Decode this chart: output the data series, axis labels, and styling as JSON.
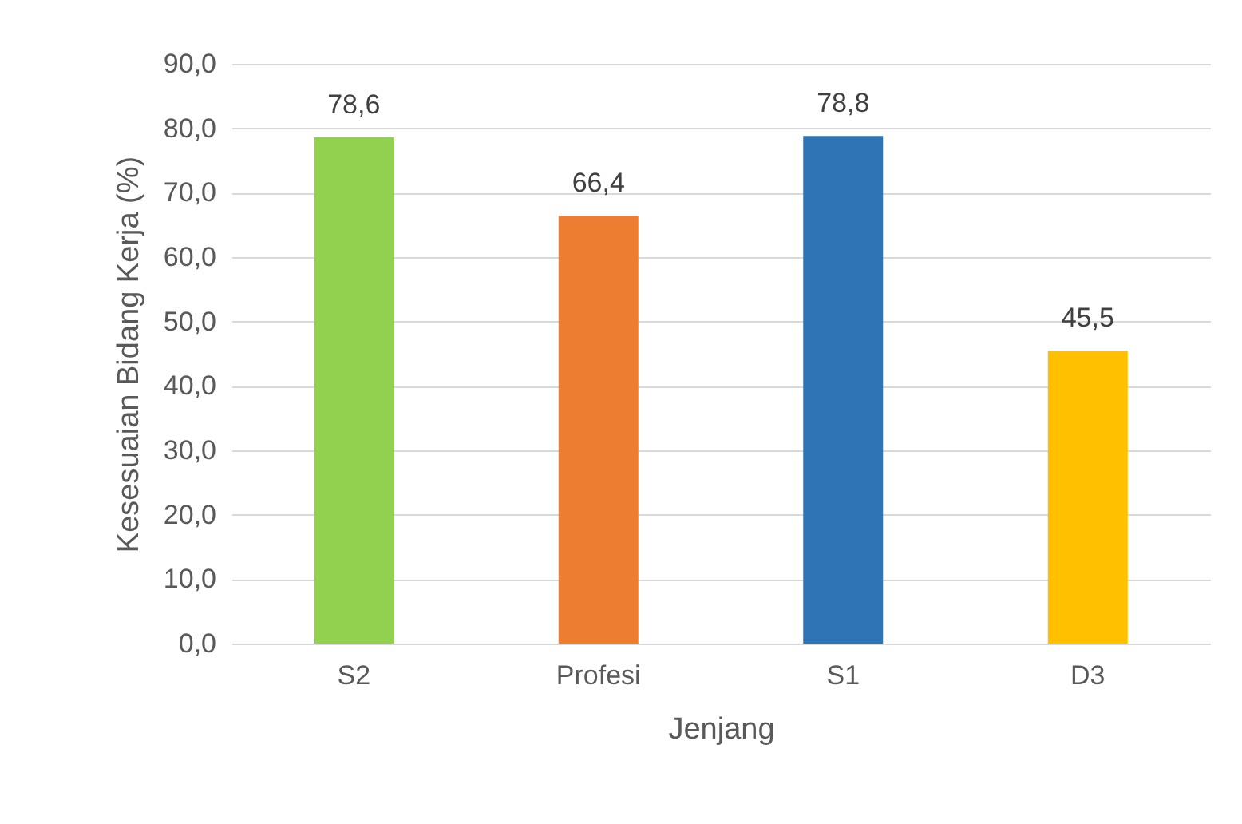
{
  "chart_data": {
    "type": "bar",
    "xlabel": "Jenjang",
    "ylabel": "Kesesuaian Bidang Kerja (%)",
    "categories": [
      "S2",
      "Profesi",
      "S1",
      "D3"
    ],
    "values": [
      78.6,
      66.4,
      78.8,
      45.5
    ],
    "value_labels": [
      "78,6",
      "66,4",
      "78,8",
      "45,5"
    ],
    "colors": [
      "#92d050",
      "#ed7d31",
      "#2e75b6",
      "#ffc000"
    ],
    "ylim": [
      0,
      90
    ],
    "yticks": [
      {
        "value": 0,
        "label": "0,0"
      },
      {
        "value": 10,
        "label": "10,0"
      },
      {
        "value": 20,
        "label": "20,0"
      },
      {
        "value": 30,
        "label": "30,0"
      },
      {
        "value": 40,
        "label": "40,0"
      },
      {
        "value": 50,
        "label": "50,0"
      },
      {
        "value": 60,
        "label": "60,0"
      },
      {
        "value": 70,
        "label": "70,0"
      },
      {
        "value": 80,
        "label": "80,0"
      },
      {
        "value": 90,
        "label": "90,0"
      }
    ],
    "grid": "y"
  }
}
